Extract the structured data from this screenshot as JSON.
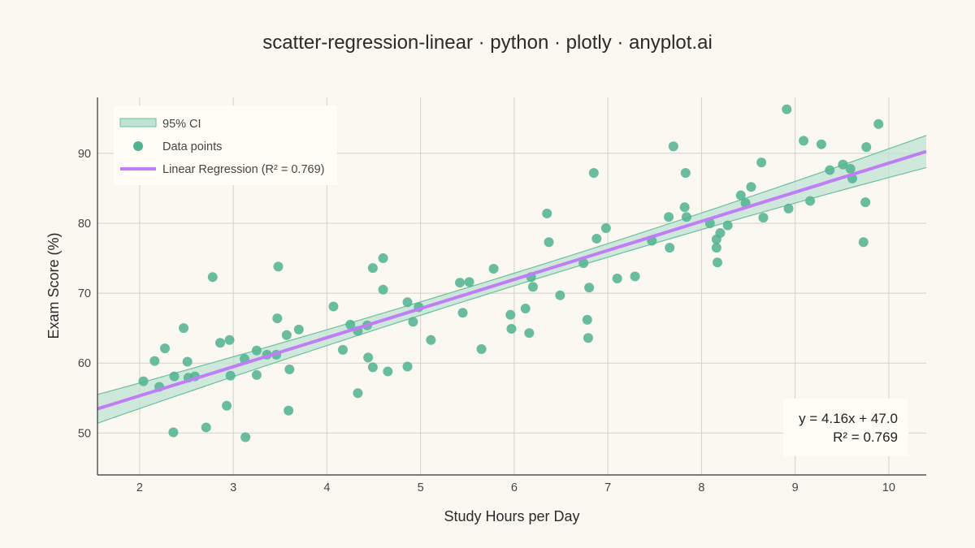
{
  "chart_data": {
    "type": "scatter",
    "title": "scatter-regression-linear · python · plotly · anyplot.ai",
    "xlabel": "Study Hours per Day",
    "ylabel": "Exam Score (%)",
    "xlim": [
      1.55,
      10.4
    ],
    "ylim": [
      44,
      98
    ],
    "x_ticks": [
      2,
      3,
      4,
      5,
      6,
      7,
      8,
      9,
      10
    ],
    "y_ticks": [
      50,
      60,
      70,
      80,
      90
    ],
    "grid": true,
    "legend": {
      "placement": "top-left",
      "entries": [
        "95% CI",
        "Data points",
        "Linear Regression (R² = 0.769)"
      ]
    },
    "colors": {
      "points": "#4fb38f",
      "regression_line": "#c07ef6",
      "ci_fill": "#bfe3d4",
      "ci_edge": "#6cc09c"
    },
    "regression": {
      "slope": 4.16,
      "intercept": 47.0,
      "r2": 0.769,
      "ci_halfwidth_at_xmin": 2.05,
      "ci_halfwidth_at_xmean": 0.9,
      "ci_halfwidth_at_xmax": 2.3,
      "x_mean": 6.0
    },
    "annotation": {
      "line1": "y = 4.16x + 47.0",
      "line2": "R² = 0.769",
      "placement": "bottom-right"
    },
    "series": [
      {
        "name": "Data points",
        "points": [
          [
            2.04,
            57.4
          ],
          [
            2.16,
            60.3
          ],
          [
            2.21,
            56.6
          ],
          [
            2.27,
            62.1
          ],
          [
            2.36,
            50.1
          ],
          [
            2.37,
            58.1
          ],
          [
            2.47,
            65.0
          ],
          [
            2.51,
            60.2
          ],
          [
            2.52,
            57.9
          ],
          [
            2.59,
            58.1
          ],
          [
            2.71,
            50.8
          ],
          [
            2.78,
            72.3
          ],
          [
            2.86,
            62.9
          ],
          [
            2.93,
            53.9
          ],
          [
            2.96,
            63.3
          ],
          [
            2.97,
            58.2
          ],
          [
            3.12,
            60.6
          ],
          [
            3.13,
            49.4
          ],
          [
            3.25,
            61.8
          ],
          [
            3.25,
            58.3
          ],
          [
            3.36,
            61.2
          ],
          [
            3.46,
            61.2
          ],
          [
            3.48,
            73.8
          ],
          [
            3.47,
            66.4
          ],
          [
            3.57,
            64.0
          ],
          [
            3.59,
            53.2
          ],
          [
            3.6,
            59.1
          ],
          [
            3.7,
            64.8
          ],
          [
            4.07,
            68.1
          ],
          [
            4.17,
            61.9
          ],
          [
            4.25,
            65.5
          ],
          [
            4.33,
            64.6
          ],
          [
            4.33,
            55.7
          ],
          [
            4.43,
            65.4
          ],
          [
            4.44,
            60.8
          ],
          [
            4.49,
            73.6
          ],
          [
            4.49,
            59.4
          ],
          [
            4.6,
            75.0
          ],
          [
            4.6,
            70.5
          ],
          [
            4.65,
            58.8
          ],
          [
            4.86,
            59.5
          ],
          [
            4.86,
            68.7
          ],
          [
            4.92,
            65.9
          ],
          [
            4.98,
            68.0
          ],
          [
            5.11,
            63.3
          ],
          [
            5.42,
            71.5
          ],
          [
            5.45,
            67.2
          ],
          [
            5.52,
            71.6
          ],
          [
            5.65,
            62.0
          ],
          [
            5.78,
            73.5
          ],
          [
            5.96,
            66.9
          ],
          [
            5.97,
            64.9
          ],
          [
            6.12,
            67.8
          ],
          [
            6.16,
            64.3
          ],
          [
            6.18,
            72.3
          ],
          [
            6.2,
            70.9
          ],
          [
            6.35,
            81.4
          ],
          [
            6.37,
            77.3
          ],
          [
            6.49,
            69.7
          ],
          [
            6.74,
            74.3
          ],
          [
            6.78,
            66.2
          ],
          [
            6.79,
            63.6
          ],
          [
            6.8,
            70.8
          ],
          [
            6.85,
            87.2
          ],
          [
            6.88,
            77.8
          ],
          [
            6.98,
            79.3
          ],
          [
            7.1,
            72.1
          ],
          [
            7.29,
            72.4
          ],
          [
            7.47,
            77.5
          ],
          [
            7.65,
            80.9
          ],
          [
            7.66,
            76.5
          ],
          [
            7.7,
            91.0
          ],
          [
            7.82,
            82.3
          ],
          [
            7.83,
            87.2
          ],
          [
            7.84,
            80.9
          ],
          [
            8.09,
            80.0
          ],
          [
            8.16,
            77.7
          ],
          [
            8.16,
            76.5
          ],
          [
            8.17,
            74.4
          ],
          [
            8.2,
            78.6
          ],
          [
            8.28,
            79.7
          ],
          [
            8.42,
            84.0
          ],
          [
            8.47,
            82.9
          ],
          [
            8.53,
            85.2
          ],
          [
            8.64,
            88.7
          ],
          [
            8.66,
            80.8
          ],
          [
            8.91,
            96.3
          ],
          [
            8.93,
            82.1
          ],
          [
            9.09,
            91.8
          ],
          [
            9.16,
            83.2
          ],
          [
            9.28,
            91.3
          ],
          [
            9.37,
            87.6
          ],
          [
            9.51,
            88.4
          ],
          [
            9.59,
            87.8
          ],
          [
            9.61,
            86.4
          ],
          [
            9.73,
            77.3
          ],
          [
            9.75,
            83.0
          ],
          [
            9.76,
            90.9
          ],
          [
            9.89,
            94.2
          ]
        ]
      }
    ]
  }
}
